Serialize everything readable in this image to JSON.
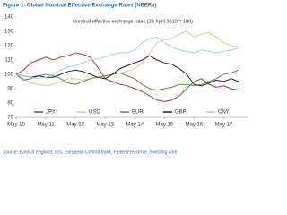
{
  "chart_data": {
    "type": "line",
    "title": "Figure 1: Global Nominal Effective Exchange Rates (NEERs)",
    "subtitle": "Nominal effective exchange rates (23 April 2010 = 100)",
    "source": "Source: Bank of England, BIS, European Central Bank, Federal Reserve, Investing.com",
    "x": [
      0,
      3,
      6,
      9,
      12,
      15,
      18,
      21,
      24,
      27,
      30,
      33,
      36,
      39,
      42,
      45,
      48,
      51,
      54,
      57,
      60,
      63,
      66,
      69,
      72,
      75,
      78,
      81,
      84,
      87,
      90
    ],
    "xlim": [
      0,
      94
    ],
    "xticks": [
      {
        "value": 0,
        "label": "May 10"
      },
      {
        "value": 12,
        "label": "May 11"
      },
      {
        "value": 24,
        "label": "May 12"
      },
      {
        "value": 36,
        "label": "May 13"
      },
      {
        "value": 48,
        "label": "May 14"
      },
      {
        "value": 60,
        "label": "May 15"
      },
      {
        "value": 72,
        "label": "May 16"
      },
      {
        "value": 84,
        "label": "May 17"
      }
    ],
    "ylim": [
      70,
      140
    ],
    "yticks": [
      70,
      80,
      90,
      100,
      110,
      120,
      130,
      140
    ],
    "series": [
      {
        "name": "JPY",
        "color": "#a33a3a",
        "values": [
          100,
          103,
          108,
          110,
          112,
          110,
          112,
          113,
          115,
          114,
          112,
          105,
          97,
          95,
          93,
          92,
          90,
          88,
          85,
          82,
          81,
          82,
          85,
          90,
          95,
          97,
          93,
          91,
          92,
          90,
          89
        ]
      },
      {
        "name": "USD",
        "color": "#f0c090",
        "values": [
          100,
          97,
          94,
          93,
          92,
          93,
          95,
          97,
          97,
          96,
          97,
          98,
          99,
          100,
          101,
          102,
          104,
          108,
          115,
          122,
          124,
          125,
          128,
          130,
          126,
          128,
          129,
          126,
          122,
          120,
          119
        ]
      },
      {
        "name": "EUR",
        "color": "#4a9a3a",
        "values": [
          100,
          96,
          97,
          99,
          100,
          99,
          97,
          94,
          93,
          95,
          97,
          98,
          99,
          100,
          101,
          99,
          97,
          93,
          90,
          89,
          90,
          91,
          93,
          93,
          92,
          93,
          95,
          97,
          100,
          101,
          103
        ]
      },
      {
        "name": "GBP",
        "color": "#222222",
        "values": [
          100,
          99,
          98,
          99,
          98,
          98,
          100,
          102,
          103,
          102,
          100,
          98,
          97,
          100,
          104,
          106,
          108,
          110,
          113,
          110,
          108,
          107,
          104,
          100,
          93,
          92,
          94,
          96,
          95,
          97,
          95
        ]
      },
      {
        "name": "CNY",
        "color": "#9bd3f0",
        "values": [
          100,
          99,
          98,
          97,
          98,
          100,
          103,
          105,
          106,
          108,
          110,
          111,
          112,
          114,
          115,
          115,
          117,
          122,
          125,
          126,
          122,
          119,
          117,
          116,
          115,
          117,
          116,
          115,
          116,
          117,
          118
        ]
      }
    ]
  }
}
